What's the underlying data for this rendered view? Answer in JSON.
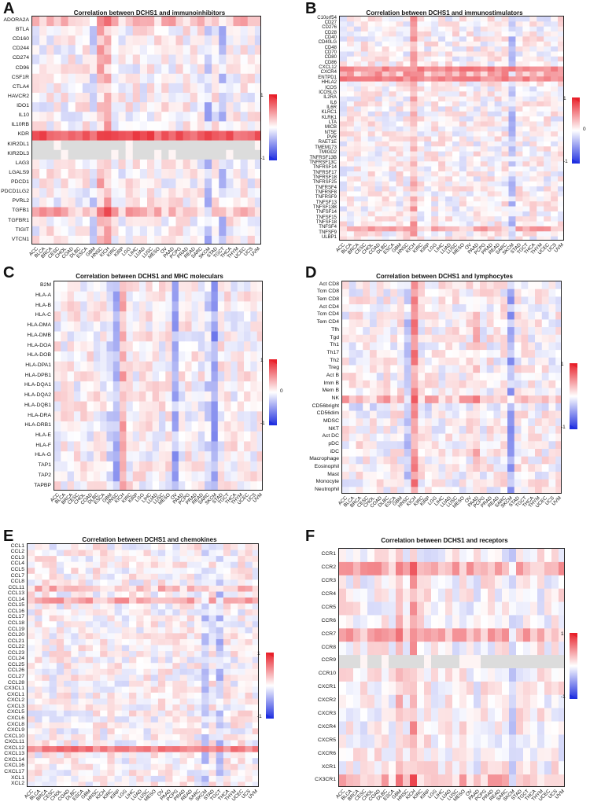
{
  "colors": {
    "positive": "#e8202a",
    "negative": "#1f2fe0",
    "neutral": "#ffffff",
    "na": "#dcdcdc"
  },
  "colorbar_ticks": [
    "1",
    "0",
    "-1"
  ],
  "cancer_types": [
    "ACC",
    "BLCA",
    "BRCA",
    "CESC",
    "CHOL",
    "COAD",
    "DLBC",
    "ESCA",
    "GBM",
    "HNSC",
    "KICH",
    "KIRC",
    "KIRP",
    "LGG",
    "LIHC",
    "LUAD",
    "LUSC",
    "MESO",
    "OV",
    "PAAD",
    "PCPG",
    "PRAD",
    "READ",
    "SARC",
    "SKCM",
    "STAD",
    "TGCT",
    "THCA",
    "THYM",
    "UCEC",
    "UCS",
    "UVM"
  ],
  "panels": [
    {
      "letter": "A",
      "title": "Correlation between DCHS1 and immunoinhibitors",
      "rows": [
        "ADORA2A",
        "BTLA",
        "CD160",
        "CD244",
        "CD274",
        "CD96",
        "CSF1R",
        "CTLA4",
        "HAVCR2",
        "IDO1",
        "IL10",
        "IL10RB",
        "KDR",
        "KIR2DL1",
        "KIR2DL3",
        "LAG3",
        "LGALS9",
        "PDCD1",
        "PDCD1LG2",
        "PVRL2",
        "TGFB1",
        "TGFBR1",
        "TIGIT",
        "VTCN1"
      ],
      "colorbar_ticks": [
        "1",
        "-1"
      ]
    },
    {
      "letter": "B",
      "title": "Correlation between DCHS1 and immunostimulators",
      "rows": [
        "C10orf54",
        "CD27",
        "CD276",
        "CD28",
        "CD40",
        "CD40LG",
        "CD48",
        "CD70",
        "CD80",
        "CD86",
        "CXCL12",
        "CXCR4",
        "ENTPD1",
        "HHLA2",
        "ICOS",
        "ICOSLG",
        "IL2RA",
        "IL6",
        "IL6R",
        "KLRC1",
        "KLRK1",
        "LTA",
        "MICB",
        "NT5E",
        "PVR",
        "RAET1E",
        "TMEM173",
        "TMIGD2",
        "TNFRSF13B",
        "TNFRSF13C",
        "TNFRSF14",
        "TNFRSF17",
        "TNFRSF18",
        "TNFRSF25",
        "TNFRSF4",
        "TNFRSF8",
        "TNFRSF9",
        "TNFSF13",
        "TNFSF13B",
        "TNFSF14",
        "TNFSF15",
        "TNFSF18",
        "TNFSF4",
        "TNFSF9",
        "ULBP1"
      ],
      "colorbar_ticks": [
        "1",
        "0",
        "-1"
      ]
    },
    {
      "letter": "C",
      "title": "Correlation between DCHS1 and MHC moleculars",
      "rows": [
        "B2M",
        "HLA-A",
        "HLA-B",
        "HLA-C",
        "HLA-DMA",
        "HLA-DMB",
        "HLA-DOA",
        "HLA-DOB",
        "HLA-DPA1",
        "HLA-DPB1",
        "HLA-DQA1",
        "HLA-DQA2",
        "HLA-DQB1",
        "HLA-DRA",
        "HLA-DRB1",
        "HLA-E",
        "HLA-F",
        "HLA-G",
        "TAP1",
        "TAP2",
        "TAPBP"
      ],
      "colorbar_ticks": [
        "1",
        "0",
        "-1"
      ]
    },
    {
      "letter": "D",
      "title": "Correlation between DCHS1 and lymphocytes",
      "rows": [
        "Act CD8",
        "Tcm CD8",
        "Tem CD8",
        "Act CD4",
        "Tcm CD4",
        "Tem CD4",
        "Tfh",
        "Tgd",
        "Th1",
        "Th17",
        "Th2",
        "Treg",
        "Act B",
        "Imm B",
        "Mem B",
        "NK",
        "CD56bright",
        "CD56dim",
        "MDSC",
        "NKT",
        "Act DC",
        "pDC",
        "iDC",
        "Macrophage",
        "Eosinophil",
        "Mast",
        "Monocyte",
        "Neutrophil"
      ],
      "colorbar_ticks": [
        "1",
        "-1"
      ]
    },
    {
      "letter": "E",
      "title": "Correlation between DCHS1 and chemokines",
      "rows": [
        "CCL1",
        "CCL2",
        "CCL3",
        "CCL4",
        "CCL5",
        "CCL7",
        "CCL8",
        "CCL11",
        "CCL13",
        "CCL14",
        "CCL15",
        "CCL16",
        "CCL17",
        "CCL18",
        "CCL19",
        "CCL20",
        "CCL21",
        "CCL22",
        "CCL23",
        "CCL24",
        "CCL25",
        "CCL26",
        "CCL27",
        "CCL28",
        "CX3CL1",
        "CXCL1",
        "CXCL2",
        "CXCL3",
        "CXCL5",
        "CXCL6",
        "CXCL8",
        "CXCL9",
        "CXCL10",
        "CXCL11",
        "CXCL12",
        "CXCL13",
        "CXCL14",
        "CXCL16",
        "CXCL17",
        "XCL1",
        "XCL2"
      ],
      "colorbar_ticks": [
        "1",
        "-1"
      ]
    },
    {
      "letter": "F",
      "title": "Correlation between DCHS1 and receptors",
      "rows": [
        "CCR1",
        "CCR2",
        "CCR3",
        "CCR4",
        "CCR5",
        "CCR6",
        "CCR7",
        "CCR8",
        "CCR9",
        "CCR10",
        "CXCR1",
        "CXCR2",
        "CXCR3",
        "CXCR4",
        "CXCR5",
        "CXCR6",
        "XCR1",
        "CX3CR1"
      ],
      "colorbar_ticks": [
        "1",
        "-1"
      ]
    }
  ],
  "chart_data": [
    {
      "type": "heatmap",
      "title": "Correlation between DCHS1 and immunoinhibitors",
      "x": "cancer_types",
      "y": "panels.0.rows",
      "value_range": [
        -1,
        1
      ],
      "notable_rows": {
        "KDR": 0.75,
        "KIR2DL1": null,
        "KIR2DL3": null,
        "ADORA2A": 0.3,
        "TGFB1": 0.35
      },
      "notable_columns": {
        "HNSC": 0.3,
        "KICH": 0.35,
        "SKCM": -0.35,
        "TGCT": -0.3,
        "GBM": -0.2
      }
    },
    {
      "type": "heatmap",
      "title": "Correlation between DCHS1 and immunostimulators",
      "x": "cancer_types",
      "y": "panels.1.rows",
      "value_range": [
        -1,
        1
      ],
      "notable_rows": {
        "CXCL12": 0.55,
        "CXCR4": 0.4,
        "ENTPD1": 0.55,
        "TNFSF4": 0.35
      },
      "notable_columns": {
        "KICH": 0.35,
        "SKCM": -0.3
      }
    },
    {
      "type": "heatmap",
      "title": "Correlation between DCHS1 and MHC moleculars",
      "x": "cancer_types",
      "y": "panels.2.rows",
      "value_range": [
        -1,
        1
      ],
      "notable_columns": {
        "HNSC": -0.45,
        "KICH": 0.4,
        "OV": -0.45,
        "SARC": -0.2,
        "SKCM": -0.55,
        "GBM": -0.2
      }
    },
    {
      "type": "heatmap",
      "title": "Correlation between DCHS1 and lymphocytes",
      "x": "cancer_types",
      "y": "panels.3.rows",
      "value_range": [
        -1,
        1
      ],
      "notable_rows": {
        "NK": 0.35,
        "CD56bright": -0.15
      },
      "notable_columns": {
        "KICH": 0.55,
        "SKCM": -0.45,
        "HNSC": -0.3,
        "PAAD": 0.25
      }
    },
    {
      "type": "heatmap",
      "title": "Correlation between DCHS1 and chemokines",
      "x": "cancer_types",
      "y": "panels.4.rows",
      "value_range": [
        -1,
        1
      ],
      "notable_rows": {
        "CXCL12": 0.6,
        "CCL14": 0.4,
        "CCL11": 0.3
      },
      "notable_columns": {
        "SKCM": -0.25,
        "TGCT": -0.3
      }
    },
    {
      "type": "heatmap",
      "title": "Correlation between DCHS1 and receptors",
      "x": "cancer_types",
      "y": "panels.5.rows",
      "value_range": [
        -1,
        1
      ],
      "notable_rows": {
        "CCR7": 0.35,
        "CCR2": 0.35,
        "CX3CR1": 0.3,
        "CCR9": null
      },
      "notable_columns": {
        "KICH": 0.4,
        "SKCM": -0.3,
        "GBM": 0.35
      }
    }
  ]
}
